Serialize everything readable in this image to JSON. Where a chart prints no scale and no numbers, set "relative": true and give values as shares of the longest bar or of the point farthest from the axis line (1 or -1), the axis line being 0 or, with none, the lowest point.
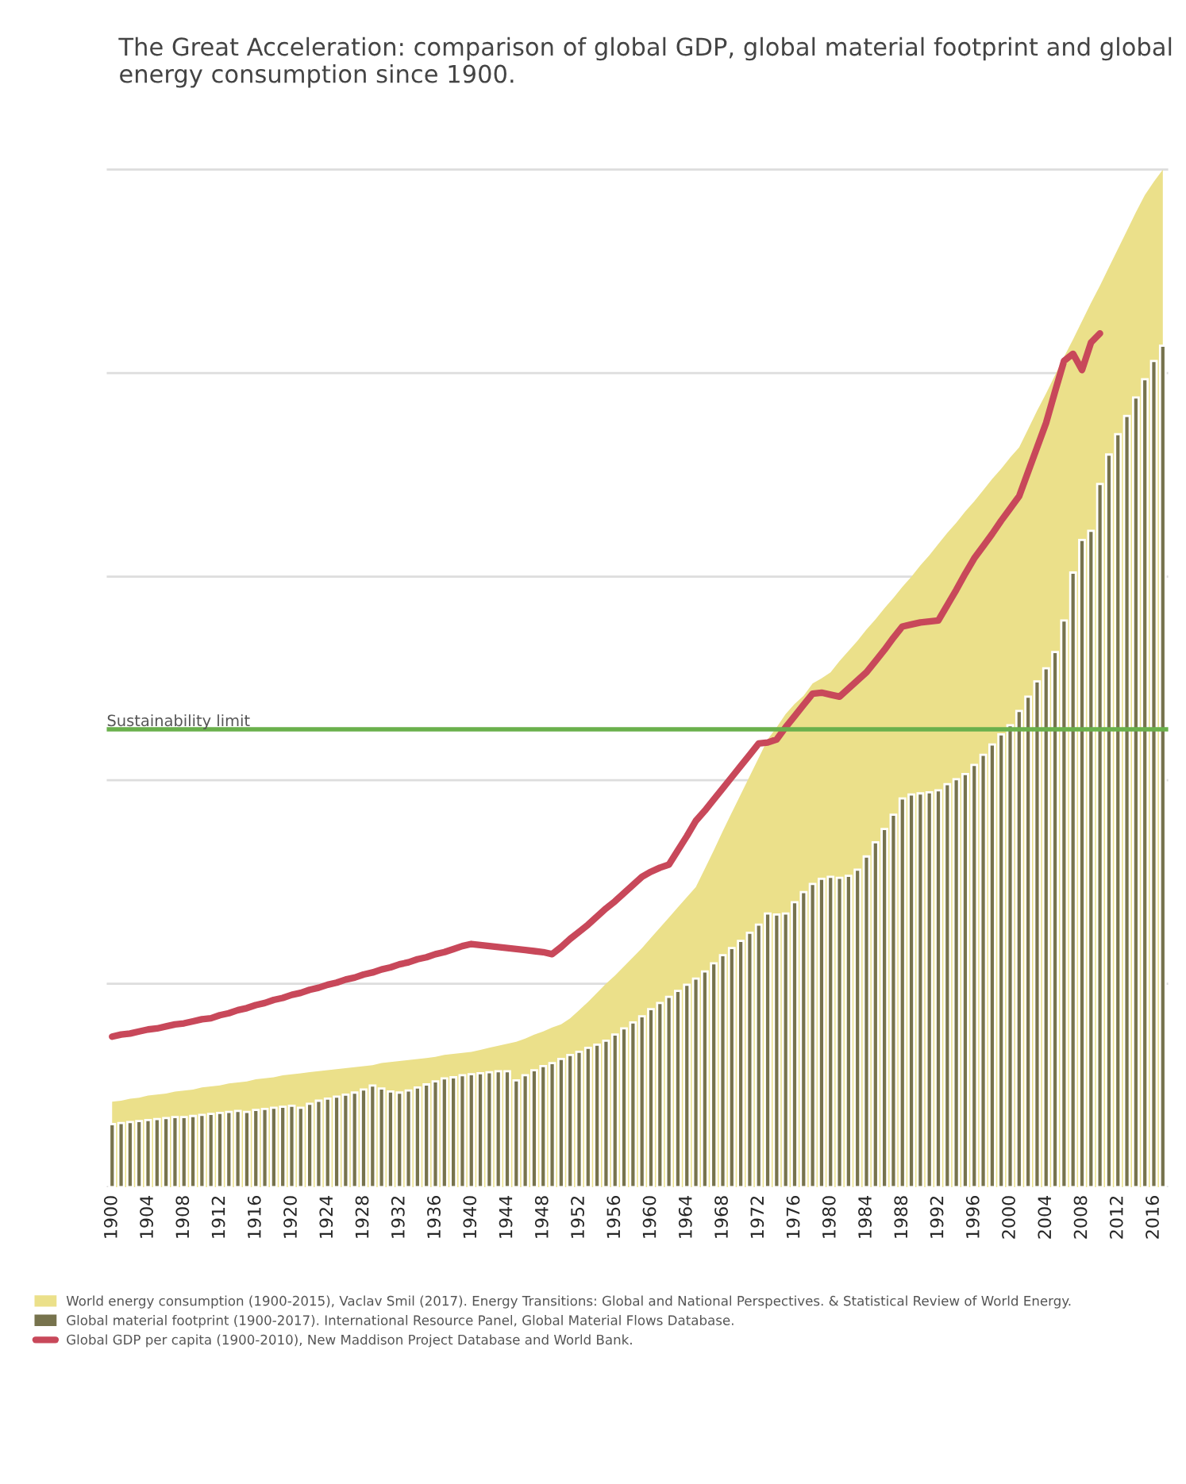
{
  "chart_data": {
    "type": "bar",
    "title": "The Great Acceleration: comparison of global GDP, global material footprint and global energy consumption since 1900.",
    "relative": true,
    "grid": "y",
    "legend": "bottom",
    "categories": [
      "1900",
      null,
      null,
      null,
      "1904",
      null,
      null,
      null,
      "1908",
      null,
      null,
      null,
      "1912",
      null,
      null,
      null,
      "1916",
      null,
      null,
      null,
      "1920",
      null,
      null,
      null,
      "1924",
      null,
      null,
      null,
      "1928",
      null,
      null,
      null,
      "1932",
      null,
      null,
      null,
      "1936",
      null,
      null,
      null,
      "1940",
      null,
      null,
      null,
      "1944",
      null,
      null,
      null,
      "1948",
      null,
      null,
      null,
      "1952",
      null,
      null,
      null,
      "1956",
      null,
      null,
      null,
      "1960",
      null,
      null,
      null,
      "1964",
      null,
      null,
      null,
      "1968",
      null,
      null,
      null,
      "1972",
      null,
      null,
      null,
      "1976",
      null,
      null,
      null,
      "1980",
      null,
      null,
      null,
      "1984",
      null,
      null,
      null,
      "1988",
      null,
      null,
      null,
      "1992",
      null,
      null,
      null,
      "1996",
      null,
      null,
      null,
      "2000",
      null,
      null,
      null,
      "2004",
      null,
      null,
      null,
      "2008",
      null,
      null,
      null,
      "2012",
      null,
      null,
      null,
      "2016",
      null
    ],
    "series": [
      {
        "type": "area",
        "name": "World energy consumption (1900-2015), Vaclav Smil (2017). Energy Transitions: Global and National Perspectives. & Statistical Review of World Energy.",
        "color": "#ebe08a",
        "values": [
          0.084,
          0.085,
          0.087,
          0.088,
          0.09,
          0.091,
          0.092,
          0.094,
          0.095,
          0.096,
          0.098,
          0.099,
          0.1,
          0.102,
          0.103,
          0.104,
          0.106,
          0.107,
          0.108,
          0.11,
          0.111,
          0.112,
          0.113,
          0.114,
          0.115,
          0.116,
          0.117,
          0.118,
          0.119,
          0.12,
          0.122,
          0.123,
          0.124,
          0.125,
          0.126,
          0.127,
          0.128,
          0.13,
          0.131,
          0.132,
          0.133,
          0.135,
          0.137,
          0.139,
          0.141,
          0.143,
          0.146,
          0.15,
          0.153,
          0.157,
          0.16,
          0.166,
          0.174,
          0.182,
          0.191,
          0.2,
          0.208,
          0.217,
          0.226,
          0.235,
          0.245,
          0.255,
          0.265,
          0.275,
          0.285,
          0.295,
          0.313,
          0.331,
          0.35,
          0.368,
          0.386,
          0.404,
          0.422,
          0.44,
          0.452,
          0.465,
          0.475,
          0.483,
          0.495,
          0.5,
          0.506,
          0.517,
          0.527,
          0.537,
          0.548,
          0.558,
          0.569,
          0.579,
          0.59,
          0.6,
          0.611,
          0.621,
          0.632,
          0.643,
          0.653,
          0.664,
          0.674,
          0.685,
          0.696,
          0.706,
          0.717,
          0.727,
          0.745,
          0.763,
          0.78,
          0.798,
          0.816,
          0.833,
          0.851,
          0.869,
          0.886,
          0.904,
          0.922,
          0.94,
          0.958,
          0.975,
          0.988,
          1.0
        ]
      },
      {
        "name": "Global material footprint (1900-2017). International Resource Panel, Global Material Flows Database.",
        "color": "#77734d",
        "values": [
          0.062,
          0.063,
          0.064,
          0.065,
          0.066,
          0.067,
          0.068,
          0.069,
          0.069,
          0.07,
          0.071,
          0.072,
          0.073,
          0.074,
          0.075,
          0.074,
          0.076,
          0.077,
          0.078,
          0.079,
          0.08,
          0.078,
          0.082,
          0.085,
          0.087,
          0.089,
          0.091,
          0.093,
          0.096,
          0.1,
          0.097,
          0.094,
          0.093,
          0.095,
          0.098,
          0.101,
          0.104,
          0.107,
          0.108,
          0.11,
          0.111,
          0.112,
          0.113,
          0.114,
          0.114,
          0.105,
          0.11,
          0.115,
          0.119,
          0.122,
          0.126,
          0.13,
          0.133,
          0.137,
          0.14,
          0.144,
          0.15,
          0.156,
          0.162,
          0.168,
          0.175,
          0.181,
          0.187,
          0.193,
          0.199,
          0.205,
          0.212,
          0.22,
          0.228,
          0.235,
          0.242,
          0.25,
          0.258,
          0.269,
          0.268,
          0.269,
          0.28,
          0.29,
          0.298,
          0.303,
          0.305,
          0.304,
          0.306,
          0.312,
          0.325,
          0.339,
          0.352,
          0.366,
          0.382,
          0.386,
          0.387,
          0.388,
          0.39,
          0.396,
          0.401,
          0.406,
          0.415,
          0.425,
          0.435,
          0.445,
          0.454,
          0.468,
          0.482,
          0.497,
          0.51,
          0.526,
          0.557,
          0.604,
          0.636,
          0.645,
          0.691,
          0.72,
          0.74,
          0.758,
          0.776,
          0.794,
          0.812,
          0.827
        ]
      },
      {
        "type": "line",
        "name": "Global GDP per capita (1900-2010), New Maddison Project Database and World Bank.",
        "color": "#c8485a",
        "values": [
          0.148,
          0.15,
          0.151,
          0.153,
          0.155,
          0.156,
          0.158,
          0.16,
          0.161,
          0.163,
          0.165,
          0.166,
          0.169,
          0.171,
          0.174,
          0.176,
          0.179,
          0.181,
          0.184,
          0.186,
          0.189,
          0.191,
          0.194,
          0.196,
          0.199,
          0.201,
          0.204,
          0.206,
          0.209,
          0.211,
          0.214,
          0.216,
          0.219,
          0.221,
          0.224,
          0.226,
          0.229,
          0.231,
          0.234,
          0.237,
          0.239,
          0.238,
          0.237,
          0.236,
          0.235,
          0.234,
          0.233,
          0.232,
          0.231,
          0.229,
          0.236,
          0.244,
          0.251,
          0.258,
          0.266,
          0.274,
          0.281,
          0.289,
          0.297,
          0.305,
          0.31,
          0.314,
          0.317,
          0.331,
          0.345,
          0.36,
          0.37,
          0.381,
          0.392,
          0.403,
          0.414,
          0.425,
          0.436,
          0.437,
          0.44,
          0.452,
          0.463,
          0.474,
          0.485,
          0.486,
          0.484,
          0.482,
          0.49,
          0.498,
          0.506,
          0.517,
          0.528,
          0.54,
          0.551,
          0.553,
          0.555,
          0.556,
          0.557,
          0.572,
          0.587,
          0.603,
          0.618,
          0.63,
          0.642,
          0.655,
          0.667,
          0.679,
          0.703,
          0.727,
          0.751,
          0.782,
          0.812,
          0.819,
          0.803,
          0.83,
          0.839,
          null,
          null,
          null,
          null,
          null,
          null,
          null
        ]
      }
    ],
    "ref_lines": [
      {
        "axis": "y",
        "value": 0.45,
        "label": "Sustainability limit",
        "color": "#6ab04c"
      }
    ]
  }
}
